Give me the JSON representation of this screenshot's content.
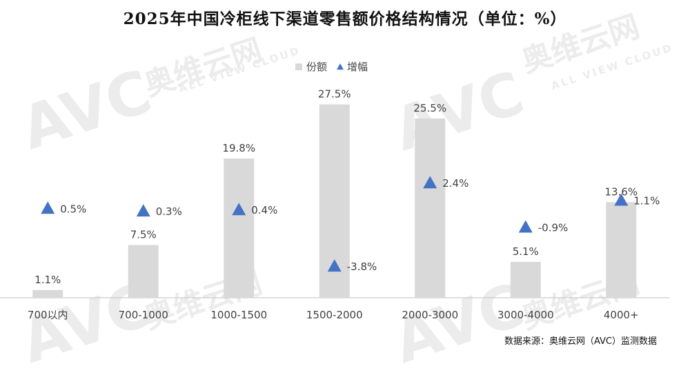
{
  "title": "2025年中国冷柜线下渠道零售额价格结构情况（单位：%）",
  "source": "数据来源：奥维云网（AVC）监测数据",
  "watermark": {
    "logo": "AVC",
    "cn": "奥维云网",
    "en": "ALL VIEW CLOUD"
  },
  "colors": {
    "bar": "#d9d9d9",
    "marker": "#4472c4",
    "text": "#404040",
    "axis": "#bfbfbf"
  },
  "chart_data": {
    "type": "bar",
    "categories": [
      "700以内",
      "700-1000",
      "1000-1500",
      "1500-2000",
      "2000-3000",
      "3000-4000",
      "4000+"
    ],
    "series": [
      {
        "name": "份额",
        "type": "bar",
        "values": [
          1.1,
          7.5,
          19.8,
          27.5,
          25.5,
          5.1,
          13.6
        ],
        "labels": [
          "1.1%",
          "7.5%",
          "19.8%",
          "27.5%",
          "25.5%",
          "5.1%",
          "13.6%"
        ]
      },
      {
        "name": "增幅",
        "type": "scatter",
        "marker": "triangle",
        "values": [
          0.5,
          0.3,
          0.4,
          -3.8,
          2.4,
          -0.9,
          1.1
        ],
        "labels": [
          "0.5%",
          "0.3%",
          "0.4%",
          "-3.8%",
          "2.4%",
          "-0.9%",
          "1.1%"
        ]
      }
    ],
    "legend": "top-center",
    "grid": false
  }
}
